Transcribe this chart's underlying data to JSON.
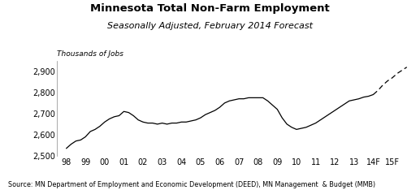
{
  "title": "Minnesota Total Non-Farm Employment",
  "subtitle": "Seasonally Adjusted, February 2014 Forecast",
  "ylabel": "Thousands of Jobs",
  "source": "Source: MN Department of Employment and Economic Development (DEED), MN Management  & Budget (MMB)",
  "ylim": [
    2500,
    2950
  ],
  "yticks": [
    2500,
    2600,
    2700,
    2800,
    2900
  ],
  "xtick_labels": [
    "98",
    "99",
    "00",
    "01",
    "02",
    "03",
    "04",
    "05",
    "06",
    "07",
    "08",
    "09",
    "10",
    "11",
    "12",
    "13",
    "14F",
    "15F"
  ],
  "actual_x": [
    1998.0,
    1998.25,
    1998.5,
    1998.75,
    1999.0,
    1999.25,
    1999.5,
    1999.75,
    2000.0,
    2000.25,
    2000.5,
    2000.75,
    2001.0,
    2001.25,
    2001.5,
    2001.75,
    2002.0,
    2002.25,
    2002.5,
    2002.75,
    2003.0,
    2003.25,
    2003.5,
    2003.75,
    2004.0,
    2004.25,
    2004.5,
    2004.75,
    2005.0,
    2005.25,
    2005.5,
    2005.75,
    2006.0,
    2006.25,
    2006.5,
    2006.75,
    2007.0,
    2007.25,
    2007.5,
    2007.75,
    2008.0,
    2008.25,
    2008.5,
    2008.75,
    2009.0,
    2009.25,
    2009.5,
    2009.75,
    2010.0,
    2010.25,
    2010.5,
    2010.75,
    2011.0,
    2011.25,
    2011.5,
    2011.75,
    2012.0,
    2012.25,
    2012.5,
    2012.75,
    2013.0,
    2013.25,
    2013.5,
    2013.75,
    2014.0
  ],
  "actual_y": [
    2535,
    2555,
    2570,
    2575,
    2590,
    2615,
    2625,
    2640,
    2660,
    2675,
    2685,
    2690,
    2710,
    2705,
    2690,
    2670,
    2660,
    2655,
    2655,
    2650,
    2655,
    2650,
    2655,
    2655,
    2660,
    2660,
    2665,
    2670,
    2680,
    2695,
    2705,
    2715,
    2730,
    2750,
    2760,
    2765,
    2770,
    2770,
    2775,
    2775,
    2775,
    2775,
    2760,
    2740,
    2720,
    2680,
    2650,
    2635,
    2625,
    2630,
    2635,
    2645,
    2655,
    2670,
    2685,
    2700,
    2715,
    2730,
    2745,
    2760,
    2765,
    2770,
    2778,
    2782,
    2790
  ],
  "forecast_x": [
    2014.0,
    2014.25,
    2014.5,
    2014.75,
    2015.0,
    2015.25,
    2015.5,
    2015.75
  ],
  "forecast_y": [
    2790,
    2810,
    2835,
    2855,
    2870,
    2890,
    2905,
    2920
  ],
  "line_color": "#000000",
  "bg_color": "#ffffff"
}
